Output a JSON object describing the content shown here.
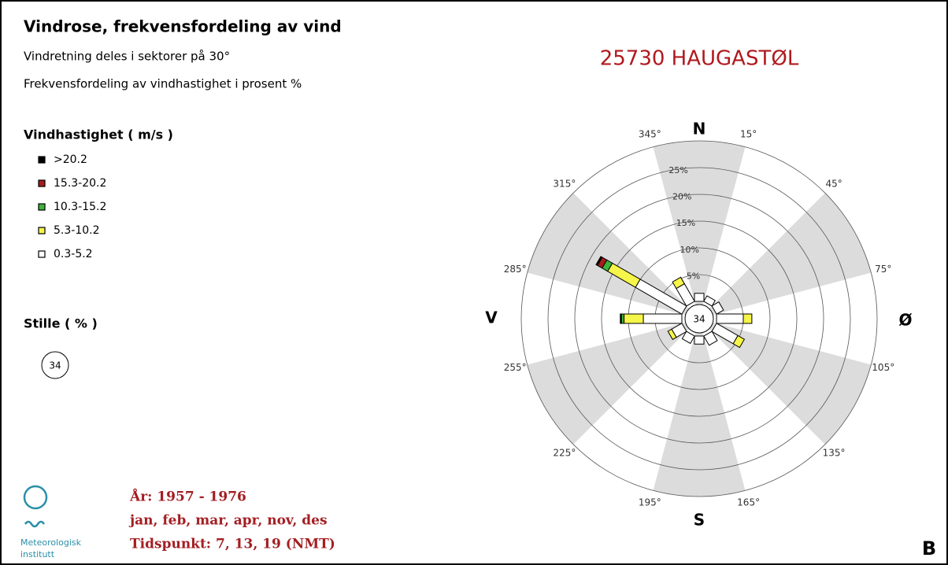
{
  "chart_data": {
    "type": "wind_rose",
    "title": "Vindrose, frekvensfordeling av vind",
    "subtitles": [
      "Vindretning deles i sektorer på 30°",
      "Frekvensfordeling av vindhastighet i prosent %"
    ],
    "station": "25730 HAUGASTØL",
    "legend_title": "Vindhastighet ( m/s )",
    "calm_label": "Stille ( % )",
    "calm": 34,
    "compass": [
      "N",
      "Ø",
      "S",
      "V"
    ],
    "categories": [
      null,
      null,
      null,
      null,
      null,
      null,
      null,
      null,
      null,
      null,
      null,
      null
    ],
    "angle_ticks": [
      {
        "value": 345,
        "label": "345°"
      },
      {
        "value": 15,
        "label": "15°"
      },
      {
        "value": 45,
        "label": "45°"
      },
      {
        "value": 75,
        "label": "75°"
      },
      {
        "value": 105,
        "label": "105°"
      },
      {
        "value": 135,
        "label": "135°"
      },
      {
        "value": 165,
        "label": "165°"
      },
      {
        "value": 195,
        "label": "195°"
      },
      {
        "value": 225,
        "label": "225°"
      },
      {
        "value": 255,
        "label": "255°"
      },
      {
        "value": 285,
        "label": "285°"
      },
      {
        "value": 315,
        "label": "315°"
      }
    ],
    "rlim": [
      0,
      30
    ],
    "rticks": [
      {
        "value": 5,
        "label": "5%"
      },
      {
        "value": 10,
        "label": "10%"
      },
      {
        "value": 15,
        "label": "15%"
      },
      {
        "value": 20,
        "label": "20%"
      },
      {
        "value": 25,
        "label": "25%"
      }
    ],
    "series": [
      {
        "name": "0.3-5.2",
        "color": "#ffffff",
        "values": [
          1.5,
          1.2,
          1.5,
          5.0,
          4.6,
          2.0,
          1.5,
          1.6,
          2.2,
          7.2,
          10.0,
          3.8
        ]
      },
      {
        "name": "5.3-10.2",
        "color": "#f5f54a",
        "values": [
          0,
          0,
          0,
          1.6,
          1.4,
          0,
          0,
          0,
          0.8,
          3.6,
          6.0,
          1.4
        ]
      },
      {
        "name": "10.3-15.2",
        "color": "#3cb43c",
        "values": [
          0,
          0,
          0,
          0,
          0,
          0,
          0,
          0,
          0,
          0.5,
          1.2,
          0
        ]
      },
      {
        "name": "15.3-20.2",
        "color": "#a81c1c",
        "values": [
          0,
          0,
          0,
          0,
          0,
          0,
          0,
          0,
          0,
          0,
          1.0,
          0
        ]
      },
      {
        "name": ">20.2",
        "color": "#000000",
        "values": [
          0,
          0,
          0,
          0,
          0,
          0,
          0,
          0,
          0,
          0.2,
          0.3,
          0
        ]
      }
    ]
  },
  "footer": [
    "År: 1957 - 1976",
    "jan, feb, mar, apr, nov, des",
    "Tidspunkt: 7, 13, 19 (NMT)"
  ],
  "logo": [
    "Meteorologisk",
    "institutt"
  ],
  "panel_label": "B"
}
